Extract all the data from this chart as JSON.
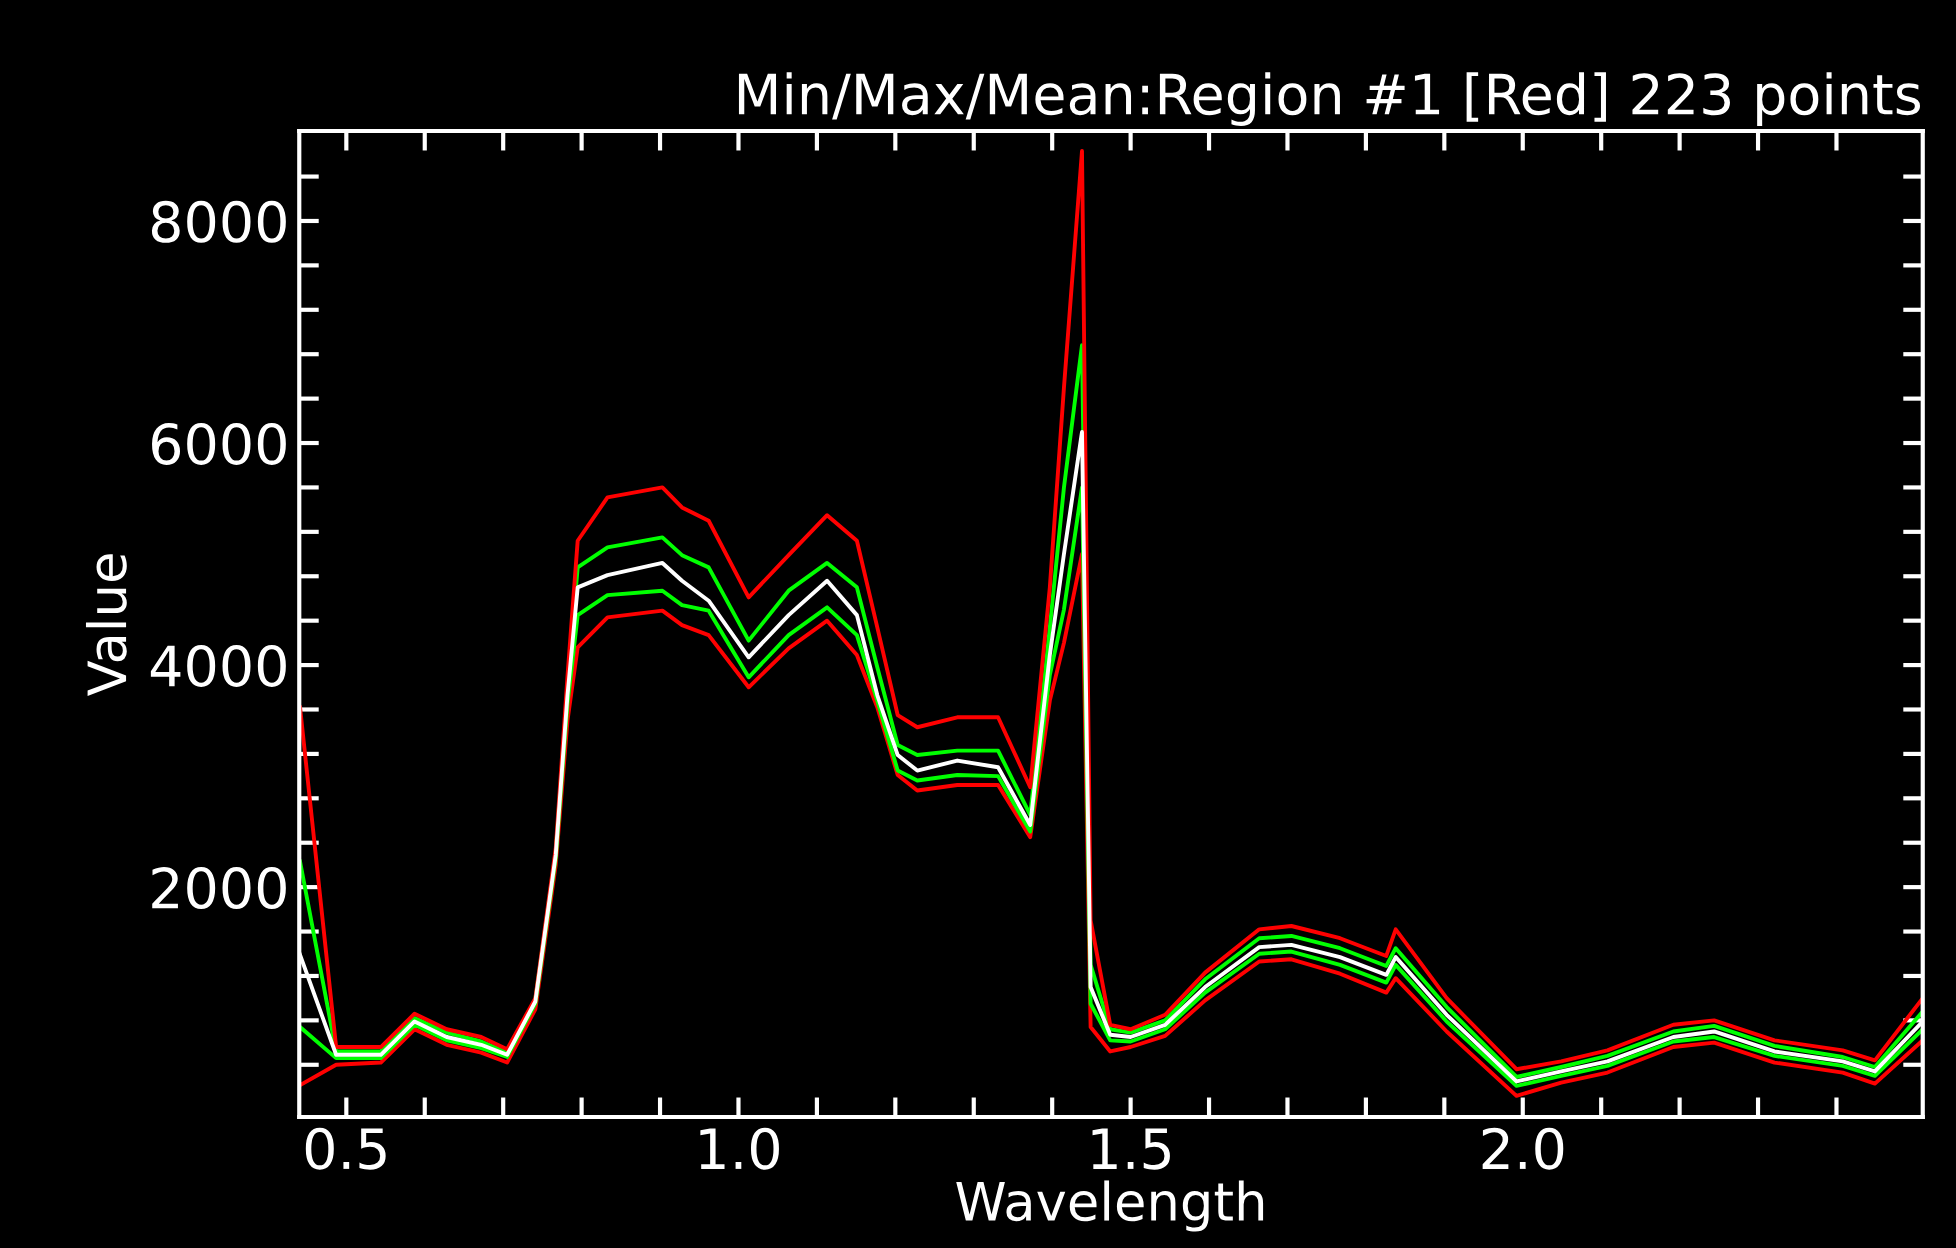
{
  "chart_data": {
    "type": "line",
    "title": "Min/Max/Mean:Region #1 [Red] 223 points",
    "xlabel": "Wavelength",
    "ylabel": "Value",
    "x": [
      0.441,
      0.487,
      0.544,
      0.587,
      0.628,
      0.672,
      0.705,
      0.741,
      0.767,
      0.782,
      0.795,
      0.833,
      0.903,
      0.928,
      0.962,
      1.013,
      1.064,
      1.113,
      1.151,
      1.177,
      1.203,
      1.228,
      1.279,
      1.331,
      1.372,
      1.397,
      1.415,
      1.438,
      1.449,
      1.474,
      1.5,
      1.544,
      1.595,
      1.664,
      1.705,
      1.767,
      1.826,
      1.838,
      1.903,
      1.992,
      2.049,
      2.108,
      2.192,
      2.244,
      2.321,
      2.408,
      2.449,
      2.51
    ],
    "series": [
      {
        "color": "#ff0000",
        "values": [
          216,
          400,
          420,
          720,
          580,
          510,
          420,
          900,
          2200,
          3500,
          4160,
          4430,
          4490,
          4360,
          4270,
          3800,
          4150,
          4400,
          4090,
          3620,
          3010,
          2870,
          2920,
          2920,
          2450,
          3680,
          4200,
          5000,
          740,
          520,
          560,
          660,
          980,
          1330,
          1350,
          1220,
          1050,
          1180,
          700,
          120,
          240,
          330,
          560,
          600,
          420,
          330,
          230,
          620
        ]
      },
      {
        "color": "#00ff00",
        "values": [
          740,
          460,
          460,
          760,
          620,
          550,
          470,
          950,
          2260,
          3650,
          4450,
          4630,
          4670,
          4540,
          4490,
          3890,
          4270,
          4520,
          4270,
          3680,
          3050,
          2960,
          3010,
          3000,
          2500,
          3910,
          4500,
          5600,
          950,
          620,
          610,
          720,
          1050,
          1400,
          1420,
          1300,
          1140,
          1300,
          790,
          210,
          300,
          390,
          610,
          650,
          480,
          390,
          300,
          720
        ]
      },
      {
        "color": "#ffffff",
        "values": [
          1390,
          490,
          490,
          790,
          650,
          580,
          490,
          970,
          2290,
          3730,
          4700,
          4810,
          4920,
          4760,
          4580,
          4070,
          4450,
          4760,
          4450,
          3730,
          3190,
          3050,
          3140,
          3080,
          2560,
          4090,
          5000,
          6100,
          1100,
          670,
          650,
          760,
          1100,
          1460,
          1480,
          1370,
          1210,
          1370,
          850,
          250,
          340,
          430,
          650,
          700,
          520,
          430,
          340,
          790
        ]
      },
      {
        "color": "#00ff00",
        "values": [
          2230,
          520,
          520,
          820,
          690,
          610,
          510,
          990,
          2320,
          3800,
          4880,
          5060,
          5150,
          4990,
          4880,
          4220,
          4670,
          4920,
          4700,
          3980,
          3280,
          3190,
          3230,
          3230,
          2650,
          4340,
          5600,
          6880,
          1300,
          720,
          690,
          800,
          1170,
          1540,
          1560,
          1450,
          1290,
          1450,
          920,
          290,
          380,
          480,
          700,
          750,
          570,
          470,
          380,
          880
        ]
      },
      {
        "color": "#ff0000",
        "values": [
          3620,
          560,
          560,
          860,
          720,
          650,
          540,
          1000,
          2350,
          3900,
          5120,
          5510,
          5600,
          5420,
          5300,
          4610,
          4990,
          5350,
          5120,
          4340,
          3550,
          3440,
          3530,
          3530,
          2900,
          4700,
          6500,
          8630,
          1700,
          760,
          720,
          850,
          1230,
          1620,
          1650,
          1540,
          1380,
          1620,
          1000,
          360,
          430,
          530,
          760,
          800,
          620,
          530,
          440,
          1000
        ]
      }
    ],
    "xlim": [
      0.44,
      2.51
    ],
    "xticks": [
      {
        "value": 0.5,
        "label": "0.5"
      },
      {
        "value": 0.6,
        "label": null
      },
      {
        "value": 0.7,
        "label": null
      },
      {
        "value": 0.8,
        "label": null
      },
      {
        "value": 0.9,
        "label": null
      },
      {
        "value": 1.0,
        "label": "1.0"
      },
      {
        "value": 1.1,
        "label": null
      },
      {
        "value": 1.2,
        "label": null
      },
      {
        "value": 1.3,
        "label": null
      },
      {
        "value": 1.4,
        "label": null
      },
      {
        "value": 1.5,
        "label": "1.5"
      },
      {
        "value": 1.6,
        "label": null
      },
      {
        "value": 1.7,
        "label": null
      },
      {
        "value": 1.8,
        "label": null
      },
      {
        "value": 1.9,
        "label": null
      },
      {
        "value": 2.0,
        "label": "2.0"
      },
      {
        "value": 2.1,
        "label": null
      },
      {
        "value": 2.2,
        "label": null
      },
      {
        "value": 2.3,
        "label": null
      },
      {
        "value": 2.4,
        "label": null
      }
    ],
    "ylim": [
      -70,
      8810
    ],
    "yticks": [
      {
        "value": 400,
        "label": null
      },
      {
        "value": 800,
        "label": null
      },
      {
        "value": 1200,
        "label": null
      },
      {
        "value": 1600,
        "label": null
      },
      2000,
      {
        "value": 2400,
        "label": null
      },
      {
        "value": 2800,
        "label": null
      },
      {
        "value": 3200,
        "label": null
      },
      {
        "value": 3600,
        "label": null
      },
      4000,
      {
        "value": 4400,
        "label": null
      },
      {
        "value": 4800,
        "label": null
      },
      {
        "value": 5200,
        "label": null
      },
      {
        "value": 5600,
        "label": null
      },
      6000,
      {
        "value": 6400,
        "label": null
      },
      {
        "value": 6800,
        "label": null
      },
      {
        "value": 7200,
        "label": null
      },
      {
        "value": 7600,
        "label": null
      },
      8000,
      {
        "value": 8400,
        "label": null
      }
    ],
    "grid": false,
    "legend": false,
    "marker": "none",
    "line_style": "solid"
  }
}
